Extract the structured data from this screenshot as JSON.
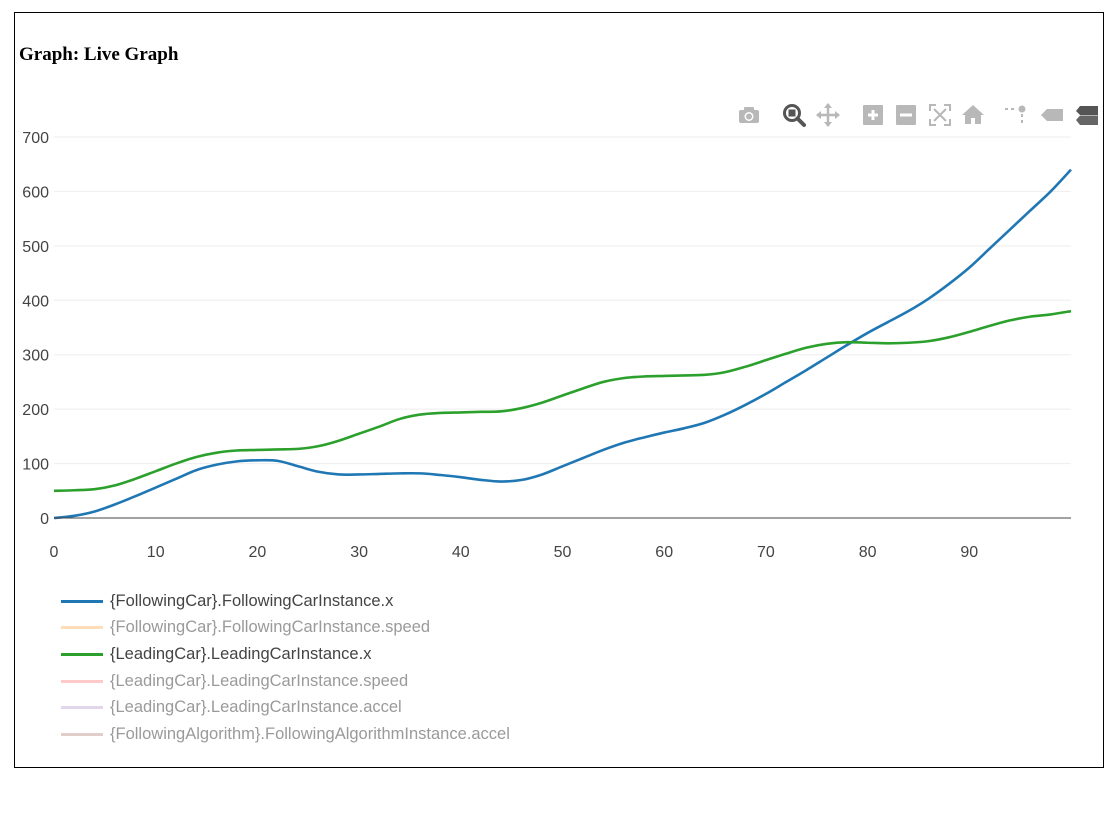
{
  "graph": {
    "title": "Graph: Live Graph"
  },
  "modebar": {
    "buttons": [
      {
        "name": "camera-icon",
        "active": false
      },
      {
        "name": "zoom-icon",
        "active": true
      },
      {
        "name": "pan-icon",
        "active": false
      },
      {
        "name": "zoom-in-icon",
        "active": false
      },
      {
        "name": "zoom-out-icon",
        "active": false
      },
      {
        "name": "autoscale-icon",
        "active": false
      },
      {
        "name": "home-icon",
        "active": false
      },
      {
        "name": "spike-lines-icon",
        "active": false
      },
      {
        "name": "hover-closest-icon",
        "active": false
      },
      {
        "name": "hover-compare-icon",
        "active": true
      }
    ]
  },
  "colors": {
    "grid": "#eeeeee",
    "axis": "#444444",
    "active_icon": "#555555",
    "inactive_icon": "#b8b8b8"
  },
  "chart_data": {
    "type": "line",
    "title": "",
    "xlabel": "",
    "ylabel": "",
    "xlim": [
      0,
      100
    ],
    "ylim": [
      0,
      700
    ],
    "xticks": [
      0,
      10,
      20,
      30,
      40,
      50,
      60,
      70,
      80,
      90
    ],
    "yticks": [
      0,
      100,
      200,
      300,
      400,
      500,
      600,
      700
    ],
    "xtick_labels": [
      "0",
      "10",
      "20",
      "30",
      "40",
      "50",
      "60",
      "70",
      "80",
      "90"
    ],
    "ytick_labels": [
      "0",
      "100",
      "200",
      "300",
      "400",
      "500",
      "600",
      "700"
    ],
    "grid": true,
    "legend_position": "bottom-left",
    "series": [
      {
        "name": "{FollowingCar}.FollowingCarInstance.x",
        "color": "#1f77b4",
        "visible": true,
        "x": [
          0,
          2,
          4,
          6,
          8,
          10,
          12,
          14,
          16,
          18,
          20,
          22,
          24,
          26,
          28,
          30,
          32,
          34,
          36,
          38,
          40,
          42,
          44,
          46,
          48,
          50,
          52,
          54,
          56,
          58,
          60,
          62,
          64,
          66,
          68,
          70,
          72,
          74,
          76,
          78,
          80,
          82,
          84,
          86,
          88,
          90,
          92,
          94,
          96,
          98,
          100
        ],
        "y": [
          0,
          4,
          12,
          25,
          40,
          56,
          72,
          88,
          98,
          104,
          106,
          105,
          95,
          85,
          80,
          80,
          81,
          82,
          82,
          79,
          75,
          70,
          67,
          70,
          80,
          95,
          110,
          125,
          138,
          148,
          157,
          165,
          175,
          190,
          208,
          228,
          250,
          272,
          295,
          318,
          340,
          360,
          380,
          403,
          430,
          460,
          495,
          530,
          565,
          600,
          640
        ]
      },
      {
        "name": "{FollowingCar}.FollowingCarInstance.speed",
        "color": "#ffbb78",
        "visible": false,
        "x": [],
        "y": []
      },
      {
        "name": "{LeadingCar}.LeadingCarInstance.x",
        "color": "#2ca02c",
        "visible": true,
        "x": [
          0,
          2,
          4,
          6,
          8,
          10,
          12,
          14,
          16,
          18,
          20,
          22,
          24,
          26,
          28,
          30,
          32,
          34,
          36,
          38,
          40,
          42,
          44,
          46,
          48,
          50,
          52,
          54,
          56,
          58,
          60,
          62,
          64,
          66,
          68,
          70,
          72,
          74,
          76,
          78,
          80,
          82,
          84,
          86,
          88,
          90,
          92,
          94,
          96,
          98,
          100
        ],
        "y": [
          50,
          51,
          53,
          60,
          72,
          86,
          100,
          112,
          120,
          124,
          125,
          126,
          127,
          132,
          142,
          155,
          168,
          182,
          190,
          193,
          194,
          195,
          196,
          202,
          212,
          225,
          238,
          250,
          257,
          260,
          261,
          262,
          263,
          268,
          278,
          290,
          302,
          313,
          320,
          323,
          322,
          321,
          322,
          325,
          332,
          342,
          353,
          363,
          370,
          374,
          380
        ]
      },
      {
        "name": "{LeadingCar}.LeadingCarInstance.speed",
        "color": "#ff9896",
        "visible": false,
        "x": [],
        "y": []
      },
      {
        "name": "{LeadingCar}.LeadingCarInstance.accel",
        "color": "#c5b0d5",
        "visible": false,
        "x": [],
        "y": []
      },
      {
        "name": "{FollowingAlgorithm}.FollowingAlgorithmInstance.accel",
        "color": "#c49c94",
        "visible": false,
        "x": [],
        "y": []
      }
    ]
  }
}
